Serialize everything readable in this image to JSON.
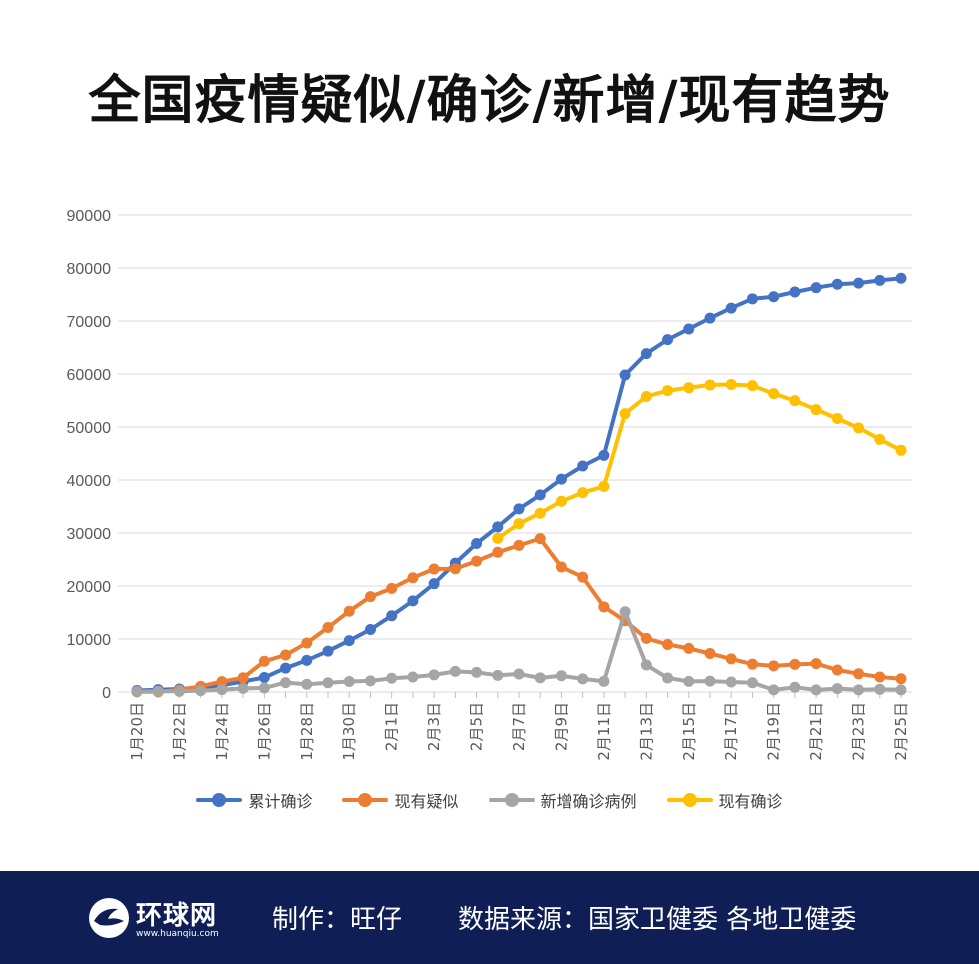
{
  "title": "全国疫情疑似/确诊/新增/现有趋势",
  "footer": {
    "logo_text": "环球网",
    "logo_url": "www.huanqiu.com",
    "credit": "制作：旺仔",
    "source": "数据来源：国家卫健委 各地卫健委",
    "background_color": "#0f1f55"
  },
  "chart_data": {
    "type": "line",
    "ylim": [
      0,
      90000
    ],
    "yticks": [
      0,
      10000,
      20000,
      30000,
      40000,
      50000,
      60000,
      70000,
      80000,
      90000
    ],
    "grid": true,
    "legend_position": "bottom",
    "x": [
      "1月20日",
      "1月21日",
      "1月22日",
      "1月23日",
      "1月24日",
      "1月25日",
      "1月26日",
      "1月27日",
      "1月28日",
      "1月29日",
      "1月30日",
      "1月31日",
      "2月1日",
      "2月2日",
      "2月3日",
      "2月4日",
      "2月5日",
      "2月6日",
      "2月7日",
      "2月8日",
      "2月9日",
      "2月10日",
      "2月11日",
      "2月12日",
      "2月13日",
      "2月14日",
      "2月15日",
      "2月16日",
      "2月17日",
      "2月18日",
      "2月19日",
      "2月20日",
      "2月21日",
      "2月22日",
      "2月23日",
      "2月24日",
      "2月25日"
    ],
    "x_tick_labels": [
      "1月20日",
      "1月22日",
      "1月24日",
      "1月26日",
      "1月28日",
      "1月30日",
      "2月1日",
      "2月3日",
      "2月5日",
      "2月7日",
      "2月9日",
      "2月11日",
      "2月13日",
      "2月15日",
      "2月17日",
      "2月19日",
      "2月21日",
      "2月23日",
      "2月25日"
    ],
    "series": [
      {
        "name": "累计确诊",
        "color": "#4472c4",
        "values": [
          291,
          440,
          571,
          830,
          1287,
          1975,
          2744,
          4515,
          5974,
          7711,
          9692,
          11791,
          14380,
          17205,
          20438,
          24324,
          28018,
          31161,
          34546,
          37198,
          40171,
          42638,
          44653,
          59804,
          63851,
          66492,
          68500,
          70548,
          72436,
          74185,
          74576,
          75465,
          76288,
          76936,
          77150,
          77658,
          78064
        ]
      },
      {
        "name": "现有疑似",
        "color": "#ed7d31",
        "values": [
          54,
          37,
          393,
          1072,
          1965,
          2684,
          5794,
          6973,
          9239,
          12167,
          15238,
          17988,
          19544,
          21558,
          23214,
          23260,
          24702,
          26359,
          27657,
          28942,
          23589,
          21675,
          16067,
          13435,
          10109,
          8969,
          8228,
          7264,
          6242,
          5248,
          4922,
          5206,
          5365,
          4148,
          3434,
          2824,
          2491
        ]
      },
      {
        "name": "新增确诊病例",
        "color": "#a5a5a5",
        "values": [
          77,
          149,
          131,
          259,
          444,
          688,
          769,
          1771,
          1459,
          1737,
          1982,
          2102,
          2590,
          2829,
          3235,
          3887,
          3694,
          3143,
          3399,
          2656,
          3062,
          2478,
          2015,
          15152,
          5090,
          2641,
          2009,
          2048,
          1886,
          1749,
          394,
          889,
          397,
          648,
          409,
          508,
          406
        ]
      },
      {
        "name": "现有确诊",
        "color": "#ffc000",
        "values": [
          null,
          null,
          null,
          null,
          null,
          null,
          null,
          null,
          null,
          null,
          null,
          null,
          null,
          null,
          null,
          null,
          null,
          28985,
          31774,
          33738,
          35982,
          37626,
          38800,
          52526,
          55748,
          56873,
          57416,
          57934,
          58016,
          57805,
          56303,
          54965,
          53284,
          51606,
          49824,
          47672,
          45604
        ]
      }
    ]
  }
}
